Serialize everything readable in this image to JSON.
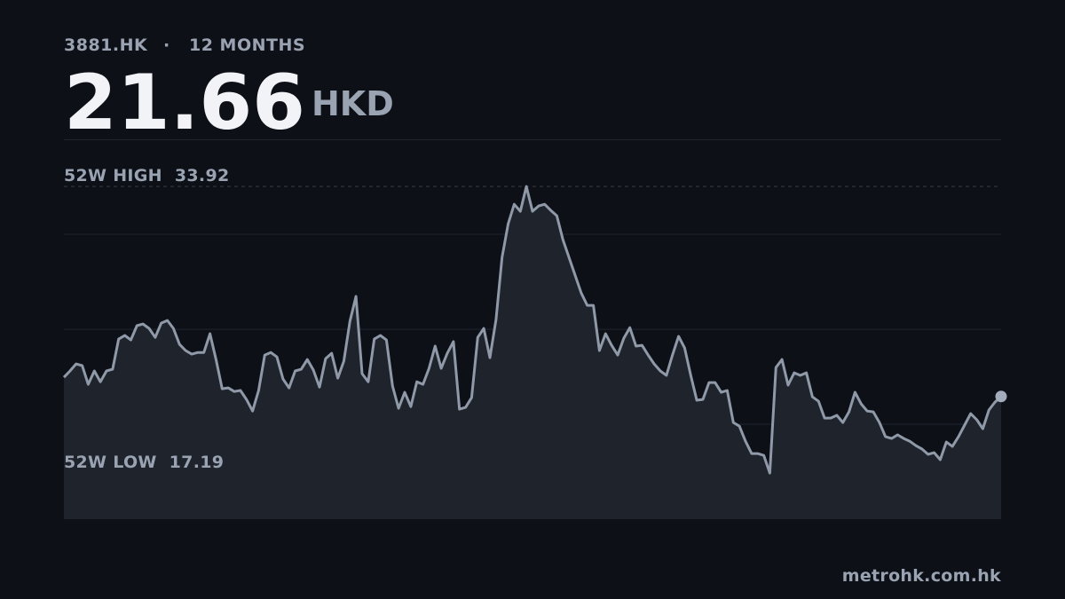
{
  "header": {
    "ticker": "3881.HK",
    "separator": "·",
    "period": "12 MONTHS",
    "price": "21.66",
    "currency": "HKD"
  },
  "chart_data": {
    "type": "line",
    "ylim": [
      14.5,
      36.67
    ],
    "yticks": [
      20.04,
      25.58,
      31.13
    ],
    "grid": true,
    "series": [
      {
        "color": "#8f99a8",
        "values": [
          22.78,
          23.15,
          23.56,
          23.46,
          22.37,
          23.15,
          22.52,
          23.15,
          23.25,
          25.01,
          25.22,
          24.96,
          25.79,
          25.89,
          25.63,
          25.11,
          25.94,
          26.1,
          25.63,
          24.7,
          24.34,
          24.13,
          24.23,
          24.23,
          25.32,
          23.82,
          22.11,
          22.16,
          21.95,
          22.01,
          21.49,
          20.81,
          22.01,
          24.08,
          24.23,
          23.97,
          22.68,
          22.16,
          23.15,
          23.25,
          23.82,
          23.2,
          22.21,
          23.87,
          24.18,
          22.73,
          23.72,
          26.05,
          27.5,
          22.99,
          22.52,
          25.01,
          25.22,
          24.96,
          22.27,
          20.97,
          21.9,
          21.07,
          22.52,
          22.37,
          23.3,
          24.6,
          23.3,
          24.18,
          24.86,
          20.92,
          21.02,
          21.59,
          25.11,
          25.63,
          23.92,
          26.15,
          29.78,
          31.74,
          32.88,
          32.47,
          33.92,
          32.47,
          32.78,
          32.88,
          32.52,
          32.21,
          30.81,
          29.78,
          28.74,
          27.7,
          26.98,
          26.98,
          24.34,
          25.32,
          24.65,
          24.08,
          25.06,
          25.68,
          24.6,
          24.65,
          24.08,
          23.56,
          23.15,
          22.89,
          24.08,
          25.17,
          24.49,
          22.89,
          21.44,
          21.49,
          22.47,
          22.47,
          21.9,
          22.01,
          20.14,
          19.93,
          19.05,
          18.33,
          18.33,
          18.22,
          17.19,
          23.35,
          23.82,
          22.32,
          23.04,
          22.89,
          23.04,
          21.64,
          21.38,
          20.4,
          20.4,
          20.56,
          20.14,
          20.76,
          21.9,
          21.23,
          20.81,
          20.76,
          20.14,
          19.31,
          19.21,
          19.42,
          19.21,
          19.05,
          18.79,
          18.59,
          18.28,
          18.38,
          17.97,
          19.0,
          18.74,
          19.31,
          19.99,
          20.66,
          20.3,
          19.78,
          20.87,
          21.33,
          21.66
        ]
      }
    ],
    "reference_lines": [
      {
        "label": "52W HIGH",
        "value": 33.92
      },
      {
        "label": "52W LOW",
        "value": 17.19
      }
    ]
  },
  "footer": {
    "source": "metrohk.com.hk"
  }
}
